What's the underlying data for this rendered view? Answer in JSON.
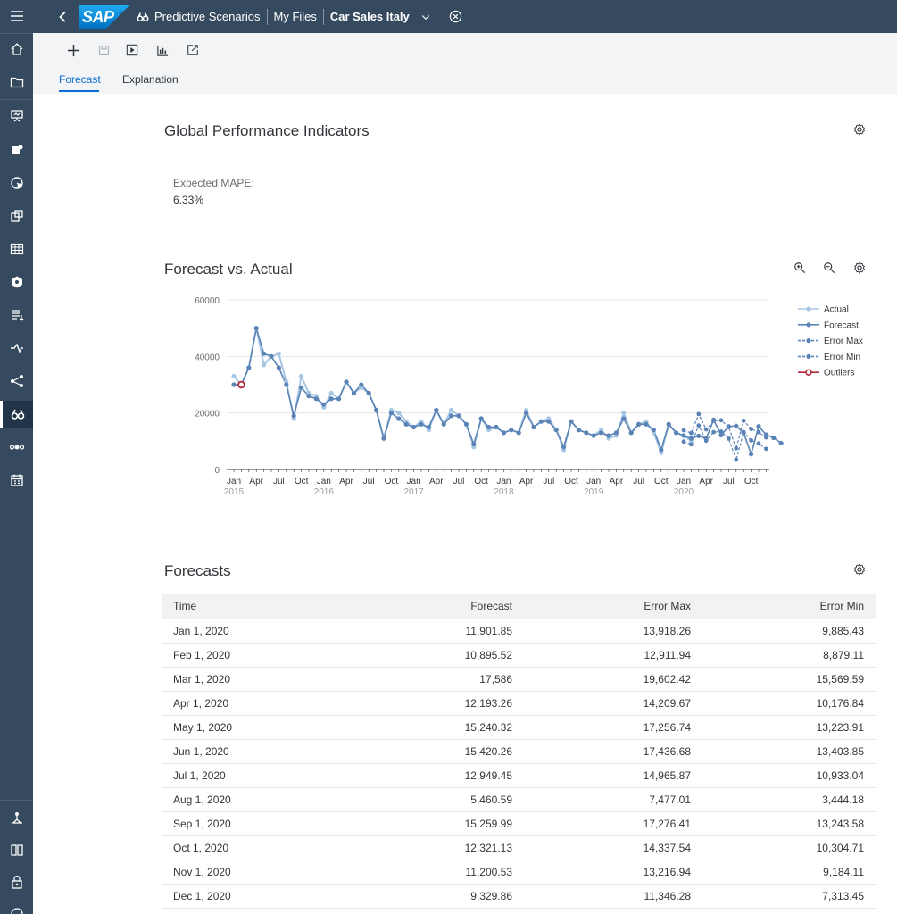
{
  "shell": {
    "logo": "SAP",
    "app_name": "Predictive Scenarios",
    "breadcrumb_1": "My Files",
    "current": "Car Sales Italy"
  },
  "tabs": {
    "forecast": "Forecast",
    "explanation": "Explanation"
  },
  "kpi": {
    "title": "Global Performance Indicators",
    "label": "Expected MAPE:",
    "value": "6.33%"
  },
  "chart": {
    "title": "Forecast vs. Actual",
    "legend": [
      "Actual",
      "Forecast",
      "Error Max",
      "Error Min",
      "Outliers"
    ],
    "y_ticks": [
      "60000",
      "40000",
      "20000",
      "0"
    ],
    "month_labels": [
      "Jan",
      "Apr",
      "Jul",
      "Oct",
      "Jan",
      "Apr",
      "Jul",
      "Oct",
      "Jan",
      "Apr",
      "Jul",
      "Oct",
      "Jan",
      "Apr",
      "Jul",
      "Oct",
      "Jan",
      "Apr",
      "Jul",
      "Oct",
      "Jan",
      "Apr",
      "Jul",
      "Oct"
    ],
    "year_labels": [
      "2015",
      "2016",
      "2017",
      "2018",
      "2019",
      "2020"
    ]
  },
  "chart_data": {
    "type": "line",
    "title": "Forecast vs. Actual",
    "ylim": [
      0,
      60000
    ],
    "x_start": "2015-01",
    "series": [
      {
        "name": "Actual",
        "values": [
          33000,
          30000,
          36000,
          50000,
          37000,
          40000,
          41000,
          31000,
          18000,
          33000,
          27000,
          26000,
          22000,
          27000,
          25000,
          31000,
          27000,
          29000,
          27000,
          21000,
          11000,
          21000,
          20000,
          17000,
          15000,
          17000,
          14000,
          21000,
          16000,
          21000,
          19000,
          16000,
          8000,
          18000,
          14000,
          15000,
          13000,
          14000,
          13000,
          21000,
          15000,
          17000,
          18000,
          14000,
          7000,
          17000,
          14000,
          13000,
          12000,
          14000,
          11000,
          12000,
          20000,
          13000,
          16000,
          17000,
          13000,
          6000,
          16000,
          13000,
          12000,
          10000
        ]
      },
      {
        "name": "Forecast",
        "values": [
          30000,
          30000,
          36000,
          50000,
          41000,
          40000,
          36000,
          30000,
          19000,
          29000,
          26000,
          25000,
          23000,
          25000,
          25000,
          31000,
          27000,
          30000,
          27000,
          21000,
          11000,
          20000,
          18000,
          16000,
          15000,
          16000,
          15000,
          21000,
          16000,
          19000,
          19000,
          16000,
          9000,
          18000,
          15000,
          15000,
          13000,
          14000,
          13000,
          20000,
          15000,
          17000,
          17000,
          14000,
          8000,
          17000,
          14000,
          13000,
          12000,
          13000,
          12000,
          13000,
          18000,
          13000,
          16000,
          16000,
          14000,
          7000,
          16000,
          13000,
          12000,
          11000,
          11901.85,
          10895.52,
          17586,
          12193.26,
          15240.32,
          15420.26,
          12949.45,
          5460.59,
          15259.99,
          12321.13,
          11200.53,
          9329.86
        ]
      },
      {
        "name": "Error Max",
        "values": [
          13918.26,
          12911.94,
          19602.42,
          14209.67,
          17256.74,
          17436.68,
          14965.87,
          7477.01,
          17276.41,
          14337.54,
          13216.94,
          11346.28
        ]
      },
      {
        "name": "Error Min",
        "values": [
          9885.43,
          8879.11,
          15569.59,
          10176.84,
          13223.91,
          13403.85,
          10933.04,
          3444.18,
          13243.58,
          10304.71,
          9184.11,
          7313.45
        ]
      },
      {
        "name": "Outliers",
        "values": [
          30000
        ]
      }
    ]
  },
  "forecasts": {
    "title": "Forecasts",
    "columns": [
      "Time",
      "Forecast",
      "Error Max",
      "Error Min"
    ],
    "rows": [
      [
        "Jan 1, 2020",
        "11,901.85",
        "13,918.26",
        "9,885.43"
      ],
      [
        "Feb 1, 2020",
        "10,895.52",
        "12,911.94",
        "8,879.11"
      ],
      [
        "Mar 1, 2020",
        "17,586",
        "19,602.42",
        "15,569.59"
      ],
      [
        "Apr 1, 2020",
        "12,193.26",
        "14,209.67",
        "10,176.84"
      ],
      [
        "May 1, 2020",
        "15,240.32",
        "17,256.74",
        "13,223.91"
      ],
      [
        "Jun 1, 2020",
        "15,420.26",
        "17,436.68",
        "13,403.85"
      ],
      [
        "Jul 1, 2020",
        "12,949.45",
        "14,965.87",
        "10,933.04"
      ],
      [
        "Aug 1, 2020",
        "5,460.59",
        "7,477.01",
        "3,444.18"
      ],
      [
        "Sep 1, 2020",
        "15,259.99",
        "17,276.41",
        "13,243.58"
      ],
      [
        "Oct 1, 2020",
        "12,321.13",
        "14,337.54",
        "10,304.71"
      ],
      [
        "Nov 1, 2020",
        "11,200.53",
        "13,216.94",
        "9,184.11"
      ],
      [
        "Dec 1, 2020",
        "9,329.86",
        "11,346.28",
        "7,313.45"
      ]
    ]
  },
  "colors": {
    "shell": "#354a5f",
    "actual": "#a7c6e4",
    "forecast": "#5a84b6",
    "outlier": "#b3273a",
    "accent": "#0a6ed1"
  }
}
